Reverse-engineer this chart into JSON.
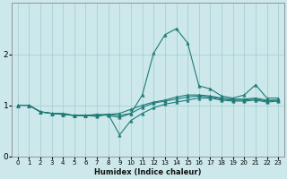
{
  "xlabel": "Humidex (Indice chaleur)",
  "ylabel": "",
  "background_color": "#cce8eb",
  "grid_color": "#aacfd4",
  "line_color": "#1e7b78",
  "xlim": [
    -0.5,
    23.5
  ],
  "ylim": [
    0,
    3
  ],
  "yticks": [
    0,
    1,
    2
  ],
  "xticks": [
    0,
    1,
    2,
    3,
    4,
    5,
    6,
    7,
    8,
    9,
    10,
    11,
    12,
    13,
    14,
    15,
    16,
    17,
    18,
    19,
    20,
    21,
    22,
    23
  ],
  "series": [
    {
      "x": [
        0,
        1,
        2,
        3,
        4,
        5,
        6,
        7,
        8,
        9,
        10,
        11,
        12,
        13,
        14,
        15,
        16,
        17,
        18,
        19,
        20,
        21,
        22,
        23
      ],
      "y": [
        1.0,
        1.0,
        0.87,
        0.84,
        0.84,
        0.8,
        0.8,
        0.82,
        0.8,
        0.76,
        0.84,
        1.2,
        2.02,
        2.38,
        2.5,
        2.22,
        1.38,
        1.32,
        1.18,
        1.14,
        1.2,
        1.4,
        1.14,
        1.14
      ]
    },
    {
      "x": [
        0,
        1,
        2,
        3,
        4,
        5,
        6,
        7,
        8,
        9,
        10,
        11,
        12,
        13,
        14,
        15,
        16,
        17,
        18,
        19,
        20,
        21,
        22,
        23
      ],
      "y": [
        1.0,
        1.0,
        0.87,
        0.84,
        0.82,
        0.8,
        0.8,
        0.81,
        0.82,
        0.84,
        0.92,
        1.0,
        1.06,
        1.1,
        1.16,
        1.2,
        1.2,
        1.18,
        1.14,
        1.12,
        1.12,
        1.14,
        1.1,
        1.1
      ]
    },
    {
      "x": [
        0,
        1,
        2,
        3,
        4,
        5,
        6,
        7,
        8,
        9,
        10,
        11,
        12,
        13,
        14,
        15,
        16,
        17,
        18,
        19,
        20,
        21,
        22,
        23
      ],
      "y": [
        1.0,
        1.0,
        0.87,
        0.84,
        0.82,
        0.8,
        0.8,
        0.8,
        0.82,
        0.8,
        0.84,
        0.96,
        1.04,
        1.08,
        1.12,
        1.16,
        1.18,
        1.16,
        1.12,
        1.1,
        1.1,
        1.12,
        1.08,
        1.1
      ]
    },
    {
      "x": [
        0,
        1,
        2,
        3,
        4,
        5,
        6,
        7,
        8,
        9,
        10,
        11,
        12,
        13,
        14,
        15,
        16,
        17,
        18,
        19,
        20,
        21,
        22,
        23
      ],
      "y": [
        1.0,
        1.0,
        0.87,
        0.84,
        0.82,
        0.8,
        0.8,
        0.78,
        0.82,
        0.42,
        0.7,
        0.84,
        0.95,
        1.02,
        1.06,
        1.1,
        1.14,
        1.14,
        1.1,
        1.08,
        1.08,
        1.1,
        1.06,
        1.08
      ]
    }
  ]
}
